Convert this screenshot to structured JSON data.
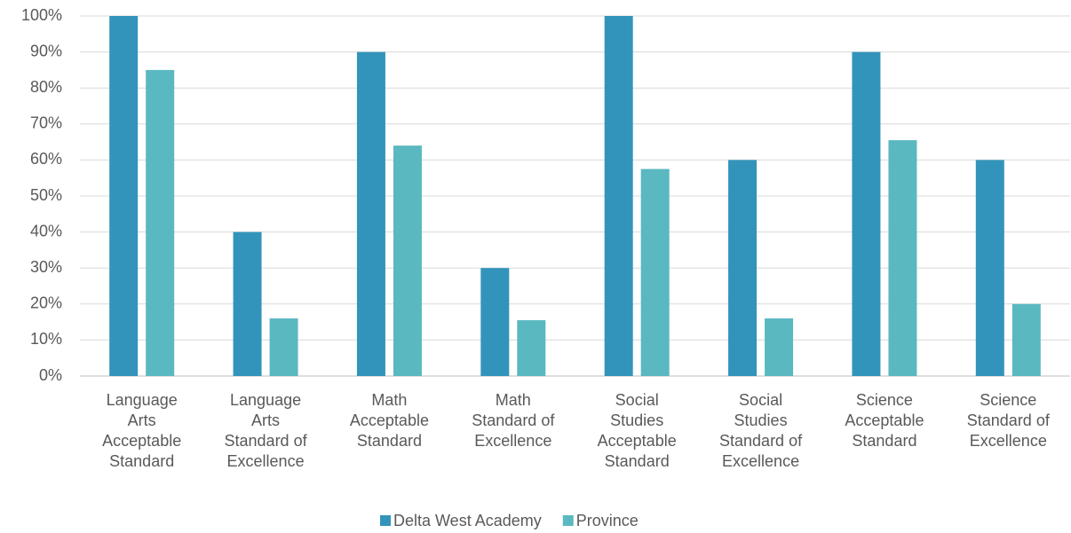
{
  "chart_data": {
    "type": "bar",
    "categories": [
      "Language\nArts\nAcceptable\nStandard",
      "Language\nArts\nStandard of\nExcellence",
      "Math\nAcceptable\nStandard",
      "Math\nStandard of\nExcellence",
      "Social\nStudies\nAcceptable\nStandard",
      "Social\nStudies\nStandard of\nExcellence",
      "Science\nAcceptable\nStandard",
      "Science\nStandard of\nExcellence"
    ],
    "series": [
      {
        "name": "Delta West Academy",
        "color": "#3394bb",
        "values": [
          100,
          40,
          90,
          30,
          100,
          60,
          90,
          60
        ]
      },
      {
        "name": "Province",
        "color": "#5ab8c0",
        "values": [
          85,
          16,
          64,
          15.5,
          57.5,
          16,
          65.5,
          20
        ]
      }
    ],
    "ylim": [
      0,
      100
    ],
    "yticks": [
      {
        "value": 0,
        "label": "0%"
      },
      {
        "value": 10,
        "label": "10%"
      },
      {
        "value": 20,
        "label": "20%"
      },
      {
        "value": 30,
        "label": "30%"
      },
      {
        "value": 40,
        "label": "40%"
      },
      {
        "value": 50,
        "label": "50%"
      },
      {
        "value": 60,
        "label": "60%"
      },
      {
        "value": 70,
        "label": "70%"
      },
      {
        "value": 80,
        "label": "80%"
      },
      {
        "value": 90,
        "label": "90%"
      },
      {
        "value": 100,
        "label": "100%"
      }
    ],
    "grid": true,
    "legend": "bottom"
  }
}
